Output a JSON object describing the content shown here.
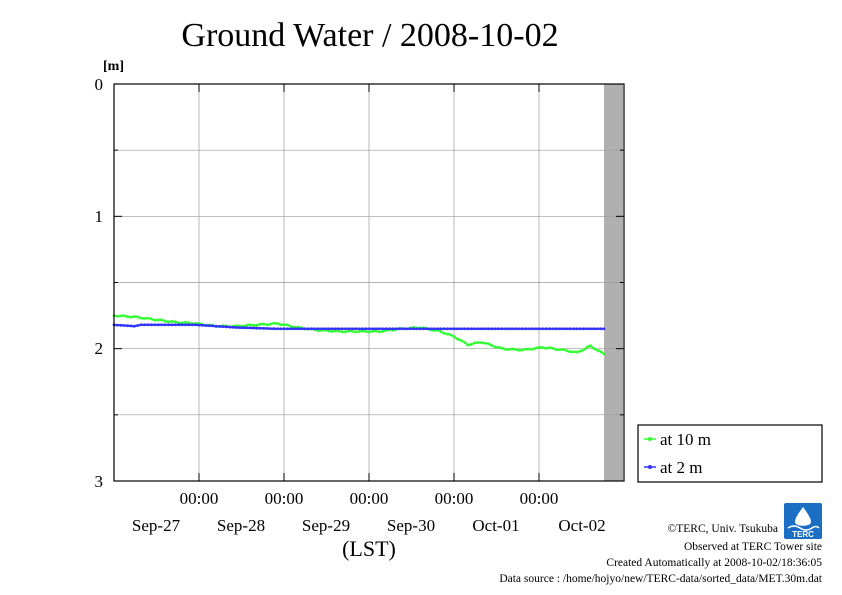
{
  "chart_data": {
    "type": "line",
    "title": "Ground Water / 2008-10-02",
    "unit_label": "[m]",
    "xlabel": "(LST)",
    "x_time_ticks": [
      "00:00",
      "00:00",
      "00:00",
      "00:00",
      "00:00"
    ],
    "x_date_ticks": [
      "Sep-27",
      "Sep-28",
      "Sep-29",
      "Sep-30",
      "Oct-01",
      "Oct-02"
    ],
    "yticks": [
      "0",
      "1",
      "2",
      "3"
    ],
    "ylim": [
      0,
      3
    ],
    "y_inverted": true,
    "xlim_hours": [
      0,
      144
    ],
    "grid": true,
    "legend_position": "bottom-right, outside plot",
    "no_data_shading_color": "#b0b0b0",
    "series": [
      {
        "name": "at 10 m",
        "color": "#33ff33",
        "x": [
          0,
          6,
          12,
          18,
          24,
          30,
          36,
          42,
          48,
          54,
          60,
          66,
          72,
          78,
          84,
          90,
          96,
          100,
          104,
          108,
          114,
          120,
          126,
          132,
          136,
          140,
          144
        ],
        "y": [
          1.75,
          1.76,
          1.78,
          1.8,
          1.81,
          1.83,
          1.83,
          1.82,
          1.81,
          1.84,
          1.86,
          1.87,
          1.87,
          1.87,
          1.85,
          1.84,
          1.87,
          1.91,
          1.97,
          1.95,
          2.0,
          2.01,
          1.99,
          2.01,
          2.03,
          1.98,
          2.04
        ]
      },
      {
        "name": "at 2 m",
        "color": "#3333ff",
        "x": [
          0,
          6,
          8,
          24,
          36,
          48,
          60,
          72,
          84,
          96,
          108,
          120,
          132,
          144
        ],
        "y": [
          1.82,
          1.83,
          1.82,
          1.82,
          1.84,
          1.85,
          1.85,
          1.85,
          1.85,
          1.85,
          1.85,
          1.85,
          1.85,
          1.85
        ]
      }
    ]
  },
  "credits": {
    "copyright": "©TERC, Univ. Tsukuba",
    "observed": "Observed at TERC Tower site",
    "created": "Created Automatically at 2008-10-02/18:36:05",
    "source": "Data source : /home/hojyo/new/TERC-data/sorted_data/MET.30m.dat"
  },
  "logo": {
    "text": "TERC"
  }
}
